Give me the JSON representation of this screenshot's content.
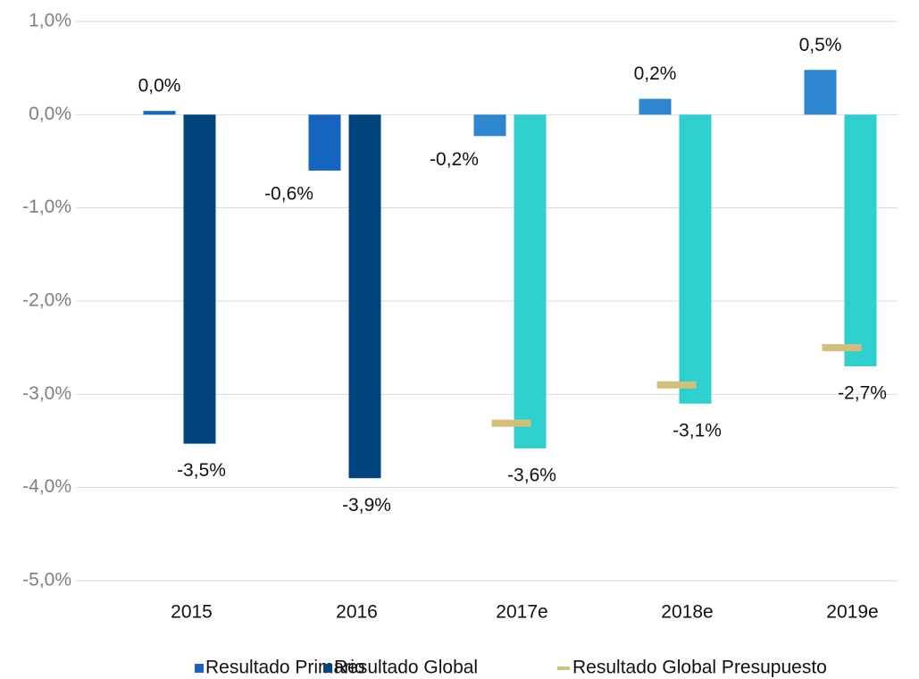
{
  "chart_data": {
    "type": "bar",
    "categories": [
      "2015",
      "2016",
      "2017e",
      "2018e",
      "2019e"
    ],
    "ylim": [
      -5,
      1
    ],
    "yticks": [
      {
        "value": 1,
        "label": "1,0%"
      },
      {
        "value": 0,
        "label": "0,0%"
      },
      {
        "value": -1,
        "label": "-1,0%"
      },
      {
        "value": -2,
        "label": "-2,0%"
      },
      {
        "value": -3,
        "label": "-3,0%"
      },
      {
        "value": -4,
        "label": "-4,0%"
      },
      {
        "value": -5,
        "label": "-5,0%"
      }
    ],
    "grid": true,
    "series": [
      {
        "name": "Resultado Primario",
        "color": "#1565c0",
        "colors": [
          "#1565c0",
          "#1565c0",
          "#2e86d0",
          "#2e86d0",
          "#2e86d0"
        ],
        "values": [
          0.04,
          -0.6,
          -0.23,
          0.17,
          0.48
        ],
        "value_labels": [
          "0,0%",
          "-0,6%",
          "-0,2%",
          "0,2%",
          "0,5%"
        ]
      },
      {
        "name": "Resultado Global",
        "color": "#00457f",
        "colors": [
          "#00457f",
          "#00457f",
          "#2ecfcf",
          "#2ecfcf",
          "#2ecfcf"
        ],
        "values": [
          -3.53,
          -3.9,
          -3.58,
          -3.1,
          -2.7
        ],
        "value_labels": [
          "-3,5%",
          "-3,9%",
          "-3,6%",
          "-3,1%",
          "-2,7%"
        ]
      },
      {
        "name": "Resultado Global Presupuesto",
        "color": "#d4bf7a",
        "type": "dash",
        "values": [
          null,
          null,
          -3.31,
          -2.9,
          -2.5
        ]
      }
    ]
  }
}
